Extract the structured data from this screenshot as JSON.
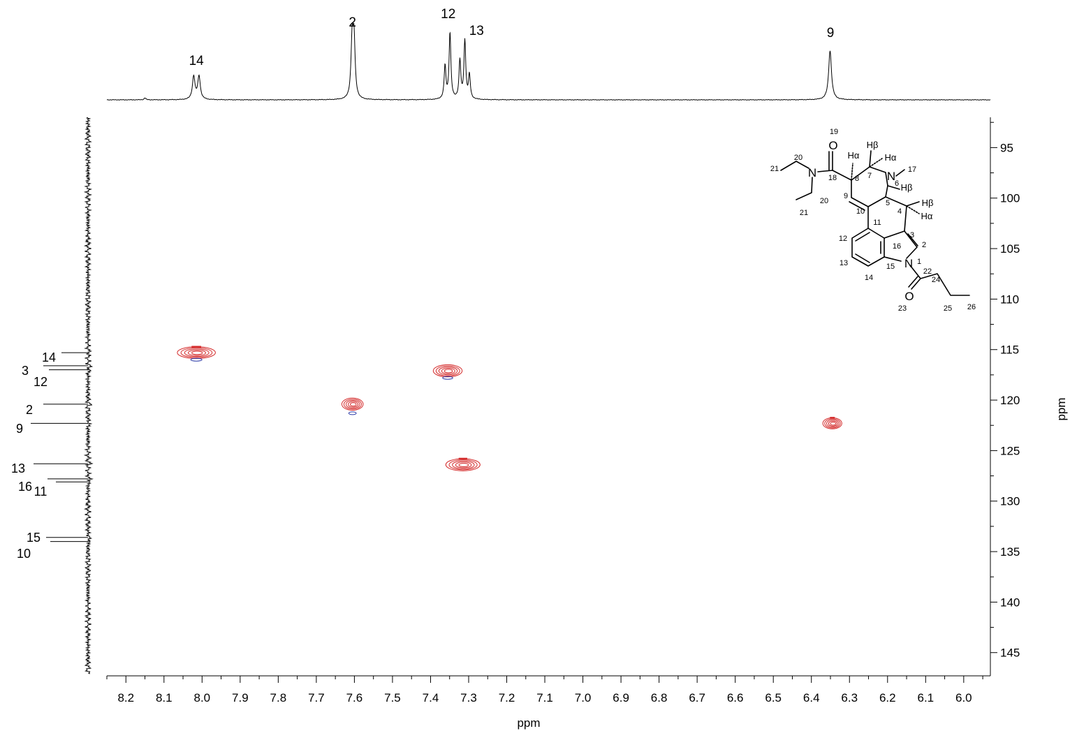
{
  "chart_data": {
    "type": "heatmap",
    "subtype": "2D NMR HSQC contour plot",
    "x_axis": {
      "label": "ppm",
      "range": [
        8.25,
        5.93
      ],
      "reversed": true,
      "ticks": [
        "8.2",
        "8.1",
        "8.0",
        "7.9",
        "7.8",
        "7.7",
        "7.6",
        "7.5",
        "7.4",
        "7.3",
        "7.2",
        "7.1",
        "7.0",
        "6.9",
        "6.8",
        "6.7",
        "6.6",
        "6.5",
        "6.4",
        "6.3",
        "6.2",
        "6.1",
        "6.0"
      ]
    },
    "y_axis": {
      "label": "ppm",
      "range": [
        92,
        147.3
      ],
      "reversed": true,
      "position": "right",
      "ticks": [
        "95",
        "100",
        "105",
        "110",
        "115",
        "120",
        "125",
        "130",
        "135",
        "140",
        "145"
      ]
    },
    "top_projection": {
      "peak_labels": [
        {
          "label": "14",
          "ppm": 8.015
        },
        {
          "label": "2",
          "ppm": 7.605
        },
        {
          "label": "12",
          "ppm": 7.35
        },
        {
          "label": "13",
          "ppm": 7.305
        },
        {
          "label": "9",
          "ppm": 6.35
        }
      ],
      "peaks": [
        {
          "ppm": 8.15,
          "height": 0.03,
          "width": 0.0025
        },
        {
          "ppm": 8.022,
          "height": 0.35,
          "width": 0.004
        },
        {
          "ppm": 8.008,
          "height": 0.35,
          "width": 0.004
        },
        {
          "ppm": 7.606,
          "height": 0.85,
          "width": 0.0035
        },
        {
          "ppm": 7.601,
          "height": 0.85,
          "width": 0.0035
        },
        {
          "ppm": 7.362,
          "height": 0.5,
          "width": 0.0028
        },
        {
          "ppm": 7.349,
          "height": 1.0,
          "width": 0.0028
        },
        {
          "ppm": 7.323,
          "height": 0.58,
          "width": 0.0028
        },
        {
          "ppm": 7.31,
          "height": 0.88,
          "width": 0.0028
        },
        {
          "ppm": 7.298,
          "height": 0.36,
          "width": 0.0028
        },
        {
          "ppm": 6.351,
          "height": 0.74,
          "width": 0.0045
        }
      ]
    },
    "left_projection": {
      "peak_labels": [
        {
          "label": "14",
          "ppm": 115.3,
          "side": "upper"
        },
        {
          "label": "3",
          "ppm": 116.6,
          "side": "upper"
        },
        {
          "label": "12",
          "ppm": 117.0,
          "side": "lower"
        },
        {
          "label": "2",
          "ppm": 120.4,
          "side": "upper"
        },
        {
          "label": "9",
          "ppm": 122.3,
          "side": "lower"
        },
        {
          "label": "13",
          "ppm": 126.3,
          "side": "upper"
        },
        {
          "label": "16",
          "ppm": 127.8,
          "side": "upper"
        },
        {
          "label": "11",
          "ppm": 128.1,
          "side": "lower"
        },
        {
          "label": "15",
          "ppm": 133.6,
          "side": "upper"
        },
        {
          "label": "10",
          "ppm": 134.0,
          "side": "lower"
        }
      ]
    },
    "cross_peaks": [
      {
        "assignment": "14",
        "x": 8.015,
        "y": 115.3,
        "rx": 0.05,
        "ry": 0.58,
        "negative_y": 116.0,
        "red_bar": true
      },
      {
        "assignment": "2",
        "x": 7.605,
        "y": 120.4,
        "rx": 0.028,
        "ry": 0.6,
        "negative_y": 121.3,
        "red_bar": false
      },
      {
        "assignment": "12",
        "x": 7.355,
        "y": 117.1,
        "rx": 0.038,
        "ry": 0.6,
        "negative_y": 117.8,
        "red_bar": false
      },
      {
        "assignment": "13",
        "x": 7.315,
        "y": 126.4,
        "rx": 0.045,
        "ry": 0.6,
        "negative_y": null,
        "red_bar": true
      },
      {
        "assignment": "9",
        "x": 6.345,
        "y": 122.3,
        "rx": 0.025,
        "ry": 0.55,
        "negative_y": null,
        "red_bar": true
      }
    ],
    "colors": {
      "positive_contour": "#d42a2a",
      "negative_contour": "#2b3ba8",
      "axis": "#000000"
    },
    "structure": {
      "atom_labels": [
        "O",
        "19",
        "20",
        "21",
        "18",
        "N",
        "Hα",
        "8",
        "Hβ",
        "7",
        "Hα",
        "N",
        "6",
        "17",
        "Hβ",
        "9",
        "20",
        "21",
        "5",
        "4",
        "Hβ",
        "Hα",
        "10",
        "11",
        "3",
        "12",
        "16",
        "2",
        "13",
        "N",
        "1",
        "15",
        "22",
        "14",
        "24",
        "O",
        "23",
        "25",
        "26"
      ]
    }
  }
}
